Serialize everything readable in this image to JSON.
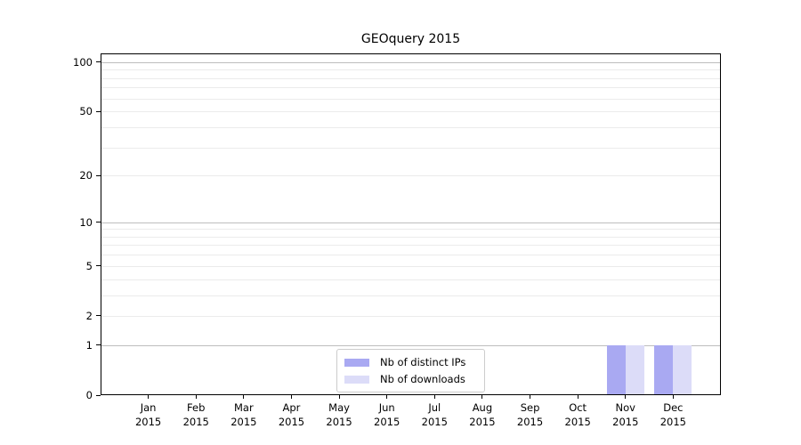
{
  "chart_data": {
    "type": "bar",
    "title": "GEOquery 2015",
    "categories": [
      "Jan 2015",
      "Feb 2015",
      "Mar 2015",
      "Apr 2015",
      "May 2015",
      "Jun 2015",
      "Jul 2015",
      "Aug 2015",
      "Sep 2015",
      "Oct 2015",
      "Nov 2015",
      "Dec 2015"
    ],
    "x_tick_months": [
      "Jan",
      "Feb",
      "Mar",
      "Apr",
      "May",
      "Jun",
      "Jul",
      "Aug",
      "Sep",
      "Oct",
      "Nov",
      "Dec"
    ],
    "x_tick_year": "2015",
    "series": [
      {
        "name": "Nb of distinct IPs",
        "color": "#a9a9f2",
        "values": [
          0,
          0,
          0,
          0,
          0,
          0,
          0,
          0,
          0,
          0,
          1,
          1
        ]
      },
      {
        "name": "Nb of downloads",
        "color": "#dcdcf8",
        "values": [
          0,
          0,
          0,
          0,
          0,
          0,
          0,
          0,
          0,
          0,
          1,
          1
        ]
      }
    ],
    "xlabel": "",
    "ylabel": "",
    "yscale": "log1p",
    "ylim": [
      0,
      113
    ],
    "ytick_values": [
      0,
      1,
      2,
      5,
      10,
      20,
      50,
      100
    ],
    "ytick_labels": [
      "0",
      "1",
      "2",
      "5",
      "10",
      "20",
      "50",
      "100"
    ],
    "major_grid_values": [
      1,
      10,
      100
    ],
    "minor_grid_values": [
      2,
      3,
      4,
      5,
      6,
      7,
      8,
      9,
      20,
      30,
      40,
      50,
      60,
      70,
      80,
      90
    ],
    "grid": true,
    "legend_position": "lower center"
  },
  "colors": {
    "major_grid": "#bdbdbd",
    "minor_grid": "#ebebeb",
    "spine": "#000000",
    "text": "#000000",
    "background": "#ffffff"
  }
}
